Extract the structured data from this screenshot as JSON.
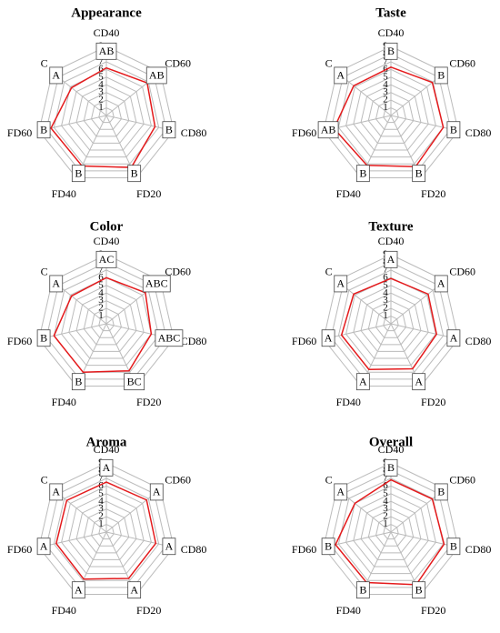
{
  "chart_data": [
    {
      "type": "radar",
      "title": "Appearance",
      "categories": [
        "CD40",
        "CD60",
        "CD80",
        "FD20",
        "FD40",
        "FD60",
        "C"
      ],
      "values": [
        6.2,
        6.8,
        6.5,
        7.5,
        7.3,
        7.4,
        5.8
      ],
      "letters": [
        "AB",
        "AB",
        "B",
        "B",
        "B",
        "B",
        "A"
      ],
      "color": "#e41a1c",
      "rlim": [
        0,
        9
      ],
      "rticks": [
        1,
        2,
        3,
        4,
        5,
        6,
        7,
        8,
        9
      ]
    },
    {
      "type": "radar",
      "title": "Taste",
      "categories": [
        "CD40",
        "CD60",
        "CD80",
        "FD20",
        "FD40",
        "FD60",
        "C"
      ],
      "values": [
        6.3,
        6.9,
        7.0,
        7.4,
        7.2,
        7.6,
        6.2
      ],
      "letters": [
        "B",
        "B",
        "B",
        "B",
        "B",
        "AB",
        "A"
      ],
      "color": "#e41a1c",
      "rlim": [
        0,
        9
      ],
      "rticks": [
        1,
        2,
        3,
        4,
        5,
        6,
        7,
        8,
        9
      ]
    },
    {
      "type": "radar",
      "title": "Color",
      "categories": [
        "CD40",
        "CD60",
        "CD80",
        "FD20",
        "FD40",
        "FD60",
        "C"
      ],
      "values": [
        6.0,
        6.5,
        6.0,
        6.8,
        7.0,
        7.0,
        5.8
      ],
      "letters": [
        "AC",
        "ABC",
        "ABC",
        "BC",
        "B",
        "B",
        "A"
      ],
      "color": "#e41a1c",
      "rlim": [
        0,
        9
      ],
      "rticks": [
        1,
        2,
        3,
        4,
        5,
        6,
        7,
        8,
        9
      ]
    },
    {
      "type": "radar",
      "title": "Texture",
      "categories": [
        "CD40",
        "CD60",
        "CD80",
        "FD20",
        "FD40",
        "FD60",
        "C"
      ],
      "values": [
        5.9,
        6.2,
        6.1,
        6.5,
        6.6,
        6.6,
        6.2
      ],
      "letters": [
        "A",
        "A",
        "A",
        "A",
        "A",
        "A",
        "A"
      ],
      "color": "#e41a1c",
      "rlim": [
        0,
        9
      ],
      "rticks": [
        1,
        2,
        3,
        4,
        5,
        6,
        7,
        8,
        9
      ]
    },
    {
      "type": "radar",
      "title": "Aroma",
      "categories": [
        "CD40",
        "CD60",
        "CD80",
        "FD20",
        "FD40",
        "FD60",
        "C"
      ],
      "values": [
        6.5,
        6.7,
        6.6,
        6.7,
        6.8,
        6.7,
        6.6
      ],
      "letters": [
        "A",
        "A",
        "A",
        "A",
        "A",
        "A",
        "A"
      ],
      "color": "#e41a1c",
      "rlim": [
        0,
        9
      ],
      "rticks": [
        1,
        2,
        3,
        4,
        5,
        6,
        7,
        8,
        9
      ]
    },
    {
      "type": "radar",
      "title": "Overall",
      "categories": [
        "CD40",
        "CD60",
        "CD80",
        "FD20",
        "FD40",
        "FD60",
        "C"
      ],
      "values": [
        6.8,
        6.9,
        7.1,
        7.6,
        7.3,
        7.4,
        6.0
      ],
      "letters": [
        "B",
        "B",
        "B",
        "B",
        "B",
        "B",
        "A"
      ],
      "color": "#e41a1c",
      "rlim": [
        0,
        9
      ],
      "rticks": [
        1,
        2,
        3,
        4,
        5,
        6,
        7,
        8,
        9
      ]
    }
  ]
}
